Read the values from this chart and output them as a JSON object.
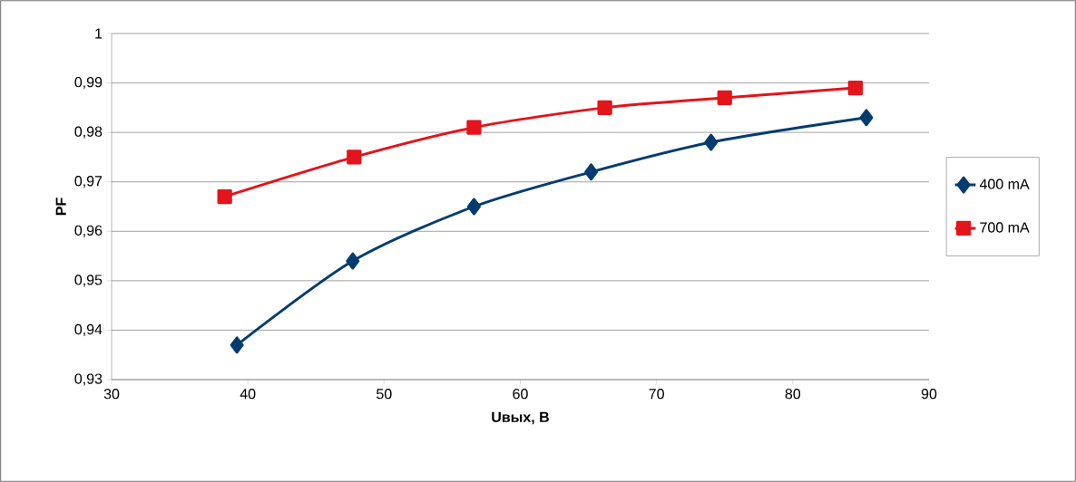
{
  "chart_data": {
    "type": "line",
    "xlabel": "Uвых, В",
    "ylabel": "PF",
    "series": [
      {
        "name": "400 mA",
        "color": "#033c6e",
        "marker": "diamond",
        "x": [
          39.2,
          47.7,
          56.6,
          65.2,
          74.0,
          85.4
        ],
        "values": [
          0.937,
          0.954,
          0.965,
          0.972,
          0.978,
          0.983
        ]
      },
      {
        "name": "700 mA",
        "color": "#e3141b",
        "marker": "square",
        "x": [
          38.3,
          47.8,
          56.6,
          66.2,
          75.0,
          84.6
        ],
        "values": [
          0.967,
          0.975,
          0.981,
          0.985,
          0.987,
          0.989
        ]
      }
    ],
    "xlim": [
      30,
      90
    ],
    "xticks": [
      30,
      40,
      50,
      60,
      70,
      80,
      90
    ],
    "ylim": [
      0.93,
      1
    ],
    "yticks": [
      {
        "value": 0.93,
        "label": "0,93"
      },
      {
        "value": 0.94,
        "label": "0,94"
      },
      {
        "value": 0.95,
        "label": "0,95"
      },
      {
        "value": 0.96,
        "label": "0,96"
      },
      {
        "value": 0.97,
        "label": "0,97"
      },
      {
        "value": 0.98,
        "label": "0,98"
      },
      {
        "value": 0.99,
        "label": "0,99"
      },
      1
    ],
    "grid": "y",
    "legend": "right",
    "line_style": "solid"
  }
}
